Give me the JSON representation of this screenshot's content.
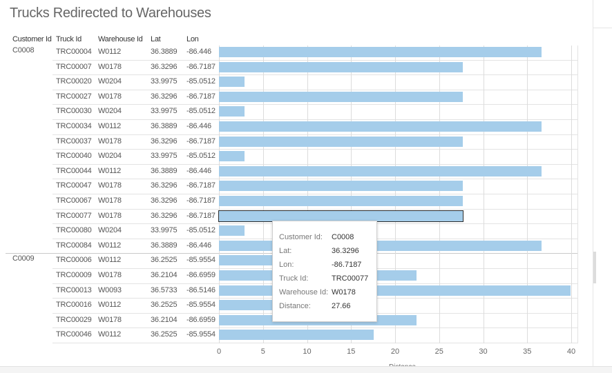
{
  "title": "Trucks Redirected to Warehouses",
  "columns": [
    "Customer Id",
    "Truck Id",
    "Warehouse Id",
    "Lat",
    "Lon"
  ],
  "groups": [
    {
      "customer": "C0008",
      "start_row": 0
    },
    {
      "customer": "C0009",
      "start_row": 14
    }
  ],
  "rows": [
    {
      "truck": "TRC00004",
      "warehouse": "W0112",
      "lat": "36.3889",
      "lon": "-86.446",
      "distance": 36.6
    },
    {
      "truck": "TRC00007",
      "warehouse": "W0178",
      "lat": "36.3296",
      "lon": "-86.7187",
      "distance": 27.66
    },
    {
      "truck": "TRC00020",
      "warehouse": "W0204",
      "lat": "33.9975",
      "lon": "-85.0512",
      "distance": 2.9
    },
    {
      "truck": "TRC00027",
      "warehouse": "W0178",
      "lat": "36.3296",
      "lon": "-86.7187",
      "distance": 27.66
    },
    {
      "truck": "TRC00030",
      "warehouse": "W0204",
      "lat": "33.9975",
      "lon": "-85.0512",
      "distance": 2.9
    },
    {
      "truck": "TRC00034",
      "warehouse": "W0112",
      "lat": "36.3889",
      "lon": "-86.446",
      "distance": 36.6
    },
    {
      "truck": "TRC00037",
      "warehouse": "W0178",
      "lat": "36.3296",
      "lon": "-86.7187",
      "distance": 27.66
    },
    {
      "truck": "TRC00040",
      "warehouse": "W0204",
      "lat": "33.9975",
      "lon": "-85.0512",
      "distance": 2.9
    },
    {
      "truck": "TRC00044",
      "warehouse": "W0112",
      "lat": "36.3889",
      "lon": "-86.446",
      "distance": 36.6
    },
    {
      "truck": "TRC00047",
      "warehouse": "W0178",
      "lat": "36.3296",
      "lon": "-86.7187",
      "distance": 27.66
    },
    {
      "truck": "TRC00067",
      "warehouse": "W0178",
      "lat": "36.3296",
      "lon": "-86.7187",
      "distance": 27.66
    },
    {
      "truck": "TRC00077",
      "warehouse": "W0178",
      "lat": "36.3296",
      "lon": "-86.7187",
      "distance": 27.66,
      "highlighted": true
    },
    {
      "truck": "TRC00080",
      "warehouse": "W0204",
      "lat": "33.9975",
      "lon": "-85.0512",
      "distance": 2.9
    },
    {
      "truck": "TRC00084",
      "warehouse": "W0112",
      "lat": "36.3889",
      "lon": "-86.446",
      "distance": 36.6
    },
    {
      "truck": "TRC00006",
      "warehouse": "W0112",
      "lat": "36.2525",
      "lon": "-85.9554",
      "distance": 17.6
    },
    {
      "truck": "TRC00009",
      "warehouse": "W0178",
      "lat": "36.2104",
      "lon": "-86.6959",
      "distance": 22.4
    },
    {
      "truck": "TRC00013",
      "warehouse": "W0093",
      "lat": "36.5733",
      "lon": "-86.5146",
      "distance": 39.9
    },
    {
      "truck": "TRC00016",
      "warehouse": "W0112",
      "lat": "36.2525",
      "lon": "-85.9554",
      "distance": 17.6
    },
    {
      "truck": "TRC00029",
      "warehouse": "W0178",
      "lat": "36.2104",
      "lon": "-86.6959",
      "distance": 22.4
    },
    {
      "truck": "TRC00046",
      "warehouse": "W0112",
      "lat": "36.2525",
      "lon": "-85.9554",
      "distance": 17.6
    }
  ],
  "chart_data": {
    "type": "bar",
    "orientation": "horizontal",
    "categories": [
      "TRC00004",
      "TRC00007",
      "TRC00020",
      "TRC00027",
      "TRC00030",
      "TRC00034",
      "TRC00037",
      "TRC00040",
      "TRC00044",
      "TRC00047",
      "TRC00067",
      "TRC00077",
      "TRC00080",
      "TRC00084",
      "TRC00006",
      "TRC00009",
      "TRC00013",
      "TRC00016",
      "TRC00029",
      "TRC00046"
    ],
    "values": [
      36.6,
      27.66,
      2.9,
      27.66,
      2.9,
      36.6,
      27.66,
      2.9,
      36.6,
      27.66,
      27.66,
      27.66,
      2.9,
      36.6,
      17.6,
      22.4,
      39.9,
      17.6,
      22.4,
      17.6
    ],
    "xlim": [
      0,
      42
    ],
    "xticks": [
      "0",
      "5",
      "10",
      "15",
      "20",
      "25",
      "30",
      "35",
      "40"
    ],
    "xlabel": "Distance",
    "grid": true,
    "bar_color": "#a5cdea"
  },
  "tooltip": {
    "items": [
      {
        "label": "Customer Id:",
        "value": "C0008"
      },
      {
        "label": "Lat:",
        "value": "36.3296"
      },
      {
        "label": "Lon:",
        "value": "-86.7187"
      },
      {
        "label": "Truck Id:",
        "value": "TRC00077"
      },
      {
        "label": "Warehouse Id:",
        "value": "W0178"
      },
      {
        "label": "Distance:",
        "value": "27.66"
      }
    ]
  }
}
